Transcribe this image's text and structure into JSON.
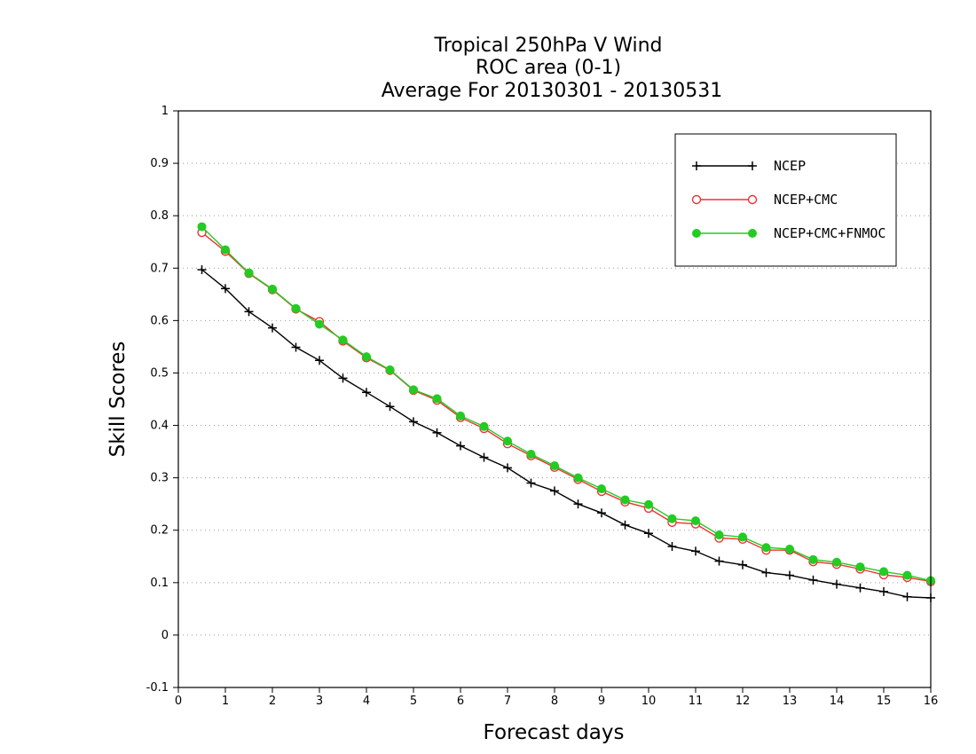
{
  "chart_data": {
    "type": "line",
    "title_lines": [
      "Tropical 250hPa V Wind",
      "ROC area (0-1)",
      "Average For 20130301 - 20130531"
    ],
    "xlabel": "Forecast days",
    "ylabel": "Skill Scores",
    "xlim": [
      0,
      16
    ],
    "ylim": [
      -0.1,
      1
    ],
    "x_ticks": [
      0,
      1,
      2,
      3,
      4,
      5,
      6,
      7,
      8,
      9,
      10,
      11,
      12,
      13,
      14,
      15,
      16
    ],
    "x_tick_labels": [
      "0",
      "1",
      "2",
      "3",
      "4",
      "5",
      "6",
      "7",
      "8",
      "9",
      "10",
      "11",
      "12",
      "13",
      "14",
      "15",
      "16"
    ],
    "y_ticks": [
      -0.1,
      0,
      0.1,
      0.2,
      0.3,
      0.4,
      0.5,
      0.6,
      0.7,
      0.8,
      0.9,
      1
    ],
    "y_tick_labels": [
      "-0.1",
      "0",
      "0.1",
      "0.2",
      "0.3",
      "0.4",
      "0.5",
      "0.6",
      "0.7",
      "0.8",
      "0.9",
      "1"
    ],
    "grid": "horizontal dotted",
    "legend_position": "top-right",
    "x": [
      0.5,
      1,
      1.5,
      2,
      2.5,
      3,
      3.5,
      4,
      4.5,
      5,
      5.5,
      6,
      6.5,
      7,
      7.5,
      8,
      8.5,
      9,
      9.5,
      10,
      10.5,
      11,
      11.5,
      12,
      12.5,
      13,
      13.5,
      14,
      14.5,
      15,
      15.5,
      16
    ],
    "series": [
      {
        "name": "NCEP",
        "color": "#000000",
        "marker": "plus",
        "values": [
          0.697,
          0.661,
          0.617,
          0.586,
          0.549,
          0.524,
          0.49,
          0.463,
          0.436,
          0.407,
          0.386,
          0.361,
          0.339,
          0.319,
          0.29,
          0.275,
          0.25,
          0.233,
          0.21,
          0.194,
          0.169,
          0.16,
          0.141,
          0.134,
          0.119,
          0.114,
          0.105,
          0.097,
          0.09,
          0.083,
          0.073,
          0.071
        ]
      },
      {
        "name": "NCEP+CMC",
        "color": "#ee3333",
        "marker": "open-circle",
        "values": [
          0.768,
          0.732,
          0.69,
          0.659,
          0.622,
          0.598,
          0.561,
          0.529,
          0.505,
          0.467,
          0.448,
          0.415,
          0.394,
          0.365,
          0.342,
          0.32,
          0.297,
          0.274,
          0.254,
          0.242,
          0.215,
          0.212,
          0.185,
          0.183,
          0.162,
          0.162,
          0.14,
          0.135,
          0.126,
          0.115,
          0.11,
          0.102
        ]
      },
      {
        "name": "NCEP+CMC+FNMOC",
        "color": "#22cc22",
        "marker": "filled-circle",
        "values": [
          0.779,
          0.735,
          0.691,
          0.66,
          0.623,
          0.593,
          0.563,
          0.531,
          0.506,
          0.468,
          0.451,
          0.418,
          0.398,
          0.37,
          0.345,
          0.323,
          0.3,
          0.279,
          0.258,
          0.249,
          0.222,
          0.218,
          0.191,
          0.187,
          0.167,
          0.164,
          0.144,
          0.139,
          0.13,
          0.121,
          0.114,
          0.104
        ]
      }
    ]
  }
}
